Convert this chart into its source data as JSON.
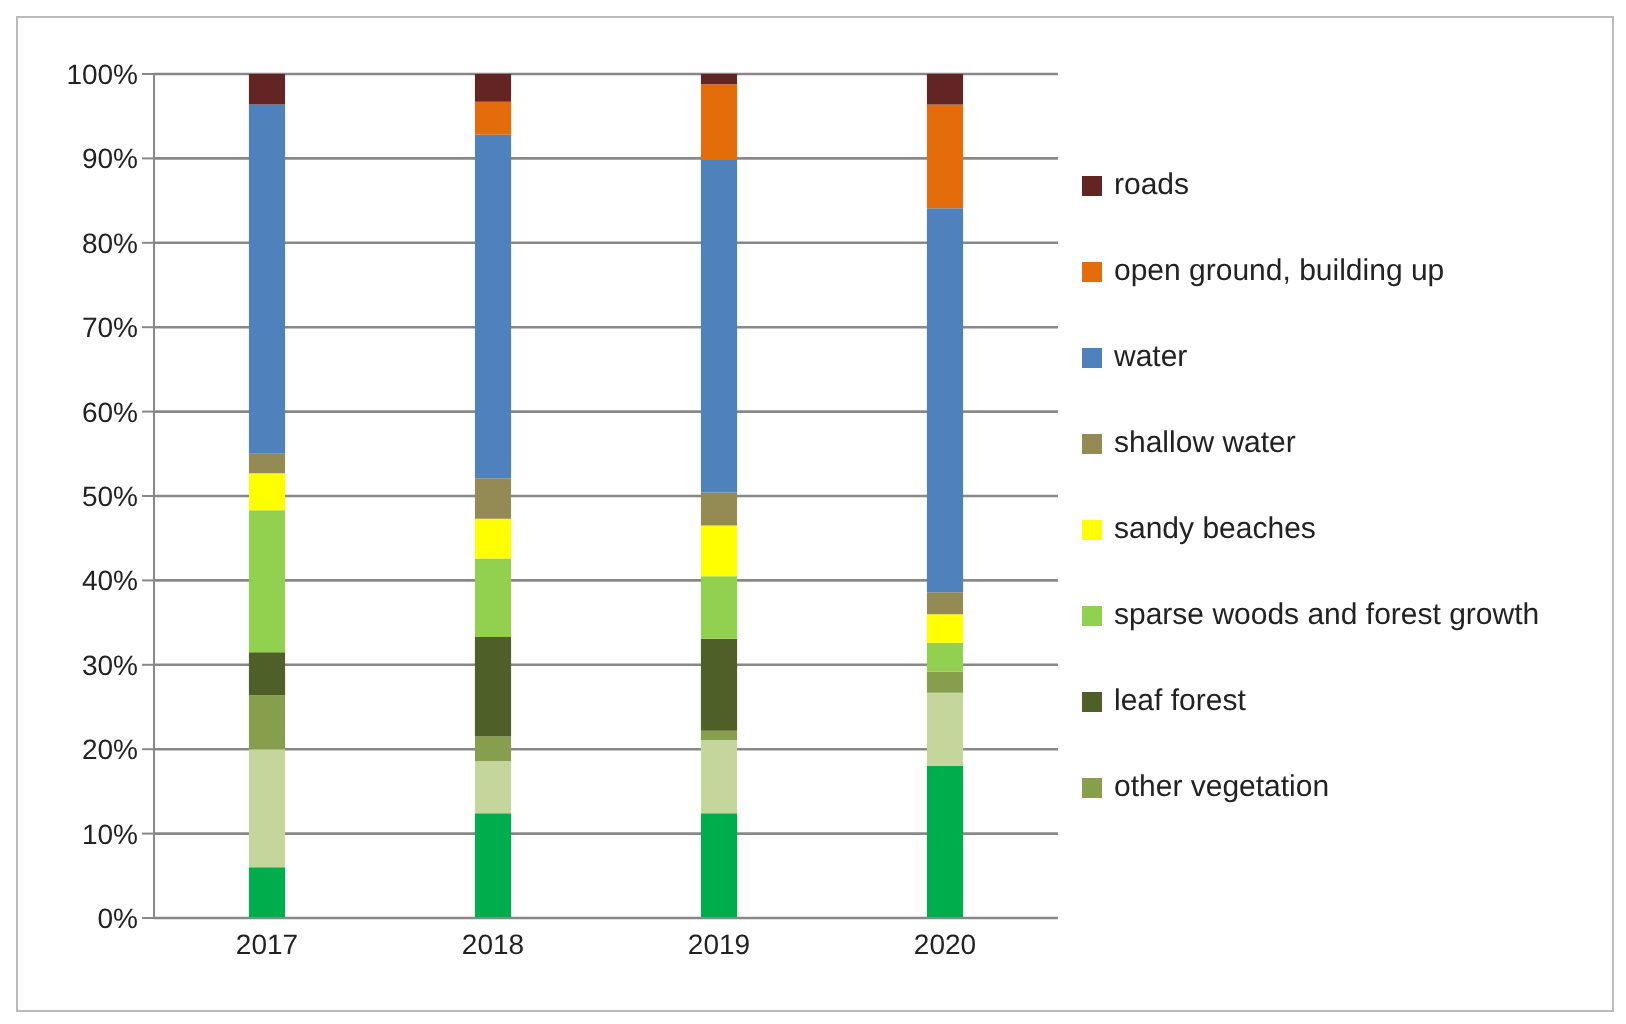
{
  "chart_data": {
    "type": "bar",
    "stacked": true,
    "categories": [
      "2017",
      "2018",
      "2019",
      "2020"
    ],
    "series": [
      {
        "color": "#00ad4c",
        "values": [
          6.0,
          12.4,
          12.4,
          18.0
        ]
      },
      {
        "color": "#c4d69b",
        "values": [
          14.0,
          6.2,
          8.7,
          8.7
        ]
      },
      {
        "name": "other vegetation",
        "color": "#879f4c",
        "values": [
          6.4,
          2.9,
          1.1,
          2.5
        ]
      },
      {
        "name": "leaf forest",
        "color": "#4e6027",
        "values": [
          5.1,
          11.8,
          10.9,
          0
        ]
      },
      {
        "name": "sparse woods and forest growth",
        "color": "#92d050",
        "values": [
          16.8,
          9.3,
          7.4,
          3.4
        ]
      },
      {
        "name": "sandy beaches",
        "color": "#ffff00",
        "values": [
          4.4,
          4.7,
          6.0,
          3.4
        ]
      },
      {
        "name": "shallow water",
        "color": "#948a54",
        "values": [
          2.3,
          4.8,
          3.9,
          2.6
        ]
      },
      {
        "name": "water",
        "color": "#4f81bd",
        "values": [
          41.4,
          40.7,
          39.5,
          45.5
        ]
      },
      {
        "name": "open ground, building up",
        "color": "#e46c0a",
        "values": [
          0,
          3.9,
          8.9,
          12.3
        ]
      },
      {
        "name": "roads",
        "color": "#632523",
        "values": [
          3.6,
          3.3,
          1.2,
          3.6
        ]
      }
    ],
    "ylim": [
      0,
      100
    ],
    "yticks": [
      {
        "value": 0,
        "label": "0%"
      },
      {
        "value": 10,
        "label": "10%"
      },
      {
        "value": 20,
        "label": "20%"
      },
      {
        "value": 30,
        "label": "30%"
      },
      {
        "value": 40,
        "label": "40%"
      },
      {
        "value": 50,
        "label": "50%"
      },
      {
        "value": 60,
        "label": "60%"
      },
      {
        "value": 70,
        "label": "70%"
      },
      {
        "value": 80,
        "label": "80%"
      },
      {
        "value": 90,
        "label": "90%"
      },
      {
        "value": 100,
        "label": "100%"
      }
    ],
    "grid": "y",
    "legend": "right"
  }
}
